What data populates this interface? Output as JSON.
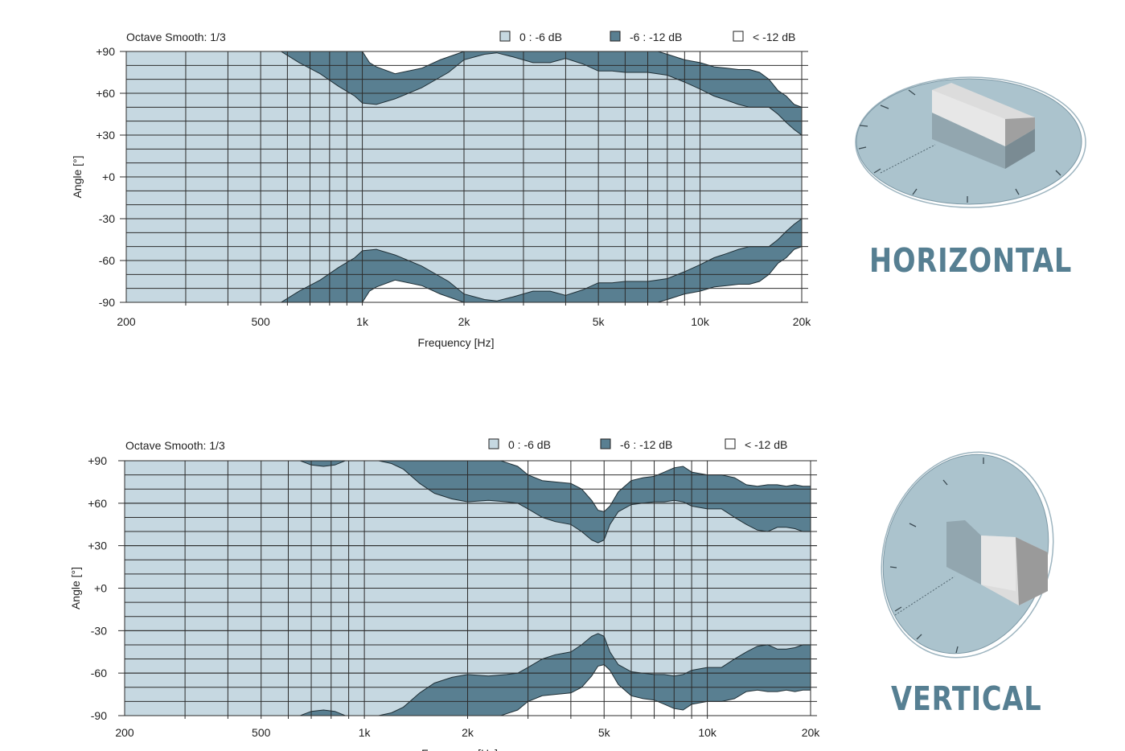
{
  "colors": {
    "band_0_6": "#c6d8e1",
    "band_6_12": "#597f91",
    "band_below_12": "#ffffff",
    "grid": "#2c2c2c",
    "title": "#567f92",
    "speaker_disc": "#abc3cd"
  },
  "icons": {
    "horizontal": "speaker-horizontal-icon",
    "vertical": "speaker-vertical-icon"
  },
  "sections": {
    "horizontal": {
      "title": "HORIZONTAL"
    },
    "vertical": {
      "title": "VERTICAL"
    }
  },
  "chart_data": [
    {
      "type": "area",
      "title": "Octave Smooth: 1/3",
      "xlabel": "Frequency [Hz]",
      "ylabel": "Angle [°]",
      "x_scale": "log",
      "xlim": [
        200,
        20000
      ],
      "ylim": [
        -90,
        90
      ],
      "xticks": [
        200,
        500,
        1000,
        2000,
        5000,
        10000,
        20000
      ],
      "xtick_labels": [
        "200",
        "500",
        "1k",
        "2k",
        "5k",
        "10k",
        "20k"
      ],
      "yticks": [
        90,
        60,
        30,
        0,
        -30,
        -60,
        -90
      ],
      "ytick_labels": [
        "+90",
        "+60",
        "+30",
        "+0",
        "-30",
        "-60",
        "-90"
      ],
      "grid": true,
      "legend": {
        "position": "top-right",
        "entries": [
          {
            "label": "0 : -6 dB",
            "color": "#c6d8e1"
          },
          {
            "label": "-6 : -12 dB",
            "color": "#597f91"
          },
          {
            "label": "< -12 dB",
            "color": "#ffffff"
          }
        ]
      },
      "symmetric": true,
      "series": [
        {
          "name": "-6 dB",
          "x": [
            575,
            650,
            750,
            850,
            950,
            1000,
            1100,
            1250,
            1500,
            1800,
            2000,
            2300,
            2500,
            2800,
            3200,
            3600,
            4000,
            4500,
            5000,
            5500,
            6000,
            7000,
            8000,
            9000,
            10000,
            11000,
            12000,
            13000,
            14000,
            15000,
            16000,
            17000,
            18000,
            19000,
            20000
          ],
          "values": [
            90,
            82,
            74,
            65,
            58,
            53,
            52,
            56,
            64,
            75,
            84,
            88,
            89,
            86,
            82,
            82,
            85,
            81,
            76,
            76,
            75,
            75,
            73,
            68,
            63,
            58,
            55,
            52,
            50,
            50,
            50,
            45,
            39,
            34,
            30
          ]
        },
        {
          "name": "-12 dB",
          "x": [
            1000,
            1050,
            1100,
            1250,
            1500,
            1700,
            2000,
            2300,
            2500,
            2800,
            3000,
            3300,
            3600,
            4000,
            4300,
            4600,
            5000,
            5500,
            6000,
            6500,
            7000,
            7500,
            8000,
            9000,
            10000,
            11000,
            12000,
            13000,
            14000,
            15000,
            16000,
            17000,
            18000,
            19000,
            20000
          ],
          "values": [
            90,
            82,
            79,
            74,
            78,
            84,
            90,
            90,
            90,
            90,
            90,
            90,
            90,
            90,
            90,
            90,
            90,
            90,
            90,
            90,
            90,
            90,
            88,
            84,
            82,
            79,
            78,
            77,
            77,
            75,
            70,
            62,
            58,
            52,
            50
          ]
        }
      ]
    },
    {
      "type": "area",
      "title": "Octave Smooth: 1/3",
      "xlabel": "Frequency [Hz]",
      "ylabel": "Angle [°]",
      "x_scale": "log",
      "xlim": [
        200,
        20000
      ],
      "ylim": [
        -90,
        90
      ],
      "xticks": [
        200,
        500,
        1000,
        2000,
        5000,
        10000,
        20000
      ],
      "xtick_labels": [
        "200",
        "500",
        "1k",
        "2k",
        "5k",
        "10k",
        "20k"
      ],
      "yticks": [
        90,
        60,
        30,
        0,
        -30,
        -60,
        -90
      ],
      "ytick_labels": [
        "+90",
        "+60",
        "+30",
        "+0",
        "-30",
        "-60",
        "-90"
      ],
      "grid": true,
      "legend": {
        "position": "top-right",
        "entries": [
          {
            "label": "0 : -6 dB",
            "color": "#c6d8e1"
          },
          {
            "label": "-6 : -12 dB",
            "color": "#597f91"
          },
          {
            "label": "< -12 dB",
            "color": "#ffffff"
          }
        ]
      },
      "symmetric": true,
      "lobes": [
        {
          "x": [
            650,
            700,
            760,
            820,
            880
          ],
          "values": [
            90,
            87,
            86,
            87,
            90
          ]
        }
      ],
      "series": [
        {
          "name": "-6 dB",
          "x": [
            1100,
            1200,
            1300,
            1450,
            1600,
            1800,
            2000,
            2300,
            2600,
            2800,
            3000,
            3300,
            3600,
            4000,
            4300,
            4600,
            4800,
            5000,
            5200,
            5500,
            6000,
            6500,
            7000,
            7500,
            8000,
            8500,
            9000,
            10000,
            11000,
            12000,
            13000,
            14000,
            15000,
            16000,
            17000,
            18000,
            19000,
            20000
          ],
          "values": [
            90,
            88,
            84,
            74,
            67,
            63,
            61,
            62,
            61,
            60,
            56,
            50,
            47,
            45,
            40,
            34,
            32,
            34,
            45,
            54,
            59,
            60,
            61,
            61,
            62,
            61,
            58,
            56,
            56,
            50,
            45,
            41,
            40,
            43,
            43,
            42,
            40,
            40
          ]
        },
        {
          "name": "-12 dB",
          "x": [
            1100,
            2500,
            2800,
            3000,
            3300,
            3600,
            4000,
            4300,
            4600,
            4800,
            5000,
            5200,
            5500,
            6000,
            6500,
            7000,
            7500,
            8000,
            8500,
            9000,
            10000,
            11000,
            12000,
            13000,
            14000,
            15000,
            16000,
            17000,
            18000,
            19000,
            20000
          ],
          "values": [
            90,
            90,
            86,
            80,
            76,
            75,
            74,
            70,
            62,
            55,
            54,
            58,
            68,
            76,
            78,
            79,
            82,
            85,
            86,
            82,
            80,
            80,
            78,
            73,
            72,
            73,
            73,
            72,
            73,
            72,
            72
          ]
        }
      ]
    }
  ]
}
